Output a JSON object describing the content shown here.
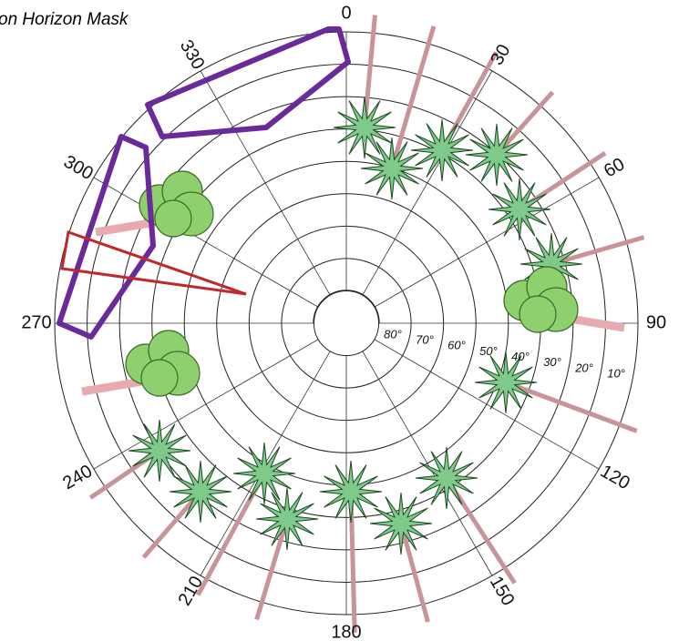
{
  "title": "on Horizon Mask",
  "azimuth_labels": [
    0,
    30,
    60,
    90,
    120,
    150,
    180,
    210,
    240,
    270,
    300,
    330
  ],
  "elevation_labels": [
    "80°",
    "70°",
    "60°",
    "50°",
    "40°",
    "30°",
    "20°",
    "10°"
  ]
}
